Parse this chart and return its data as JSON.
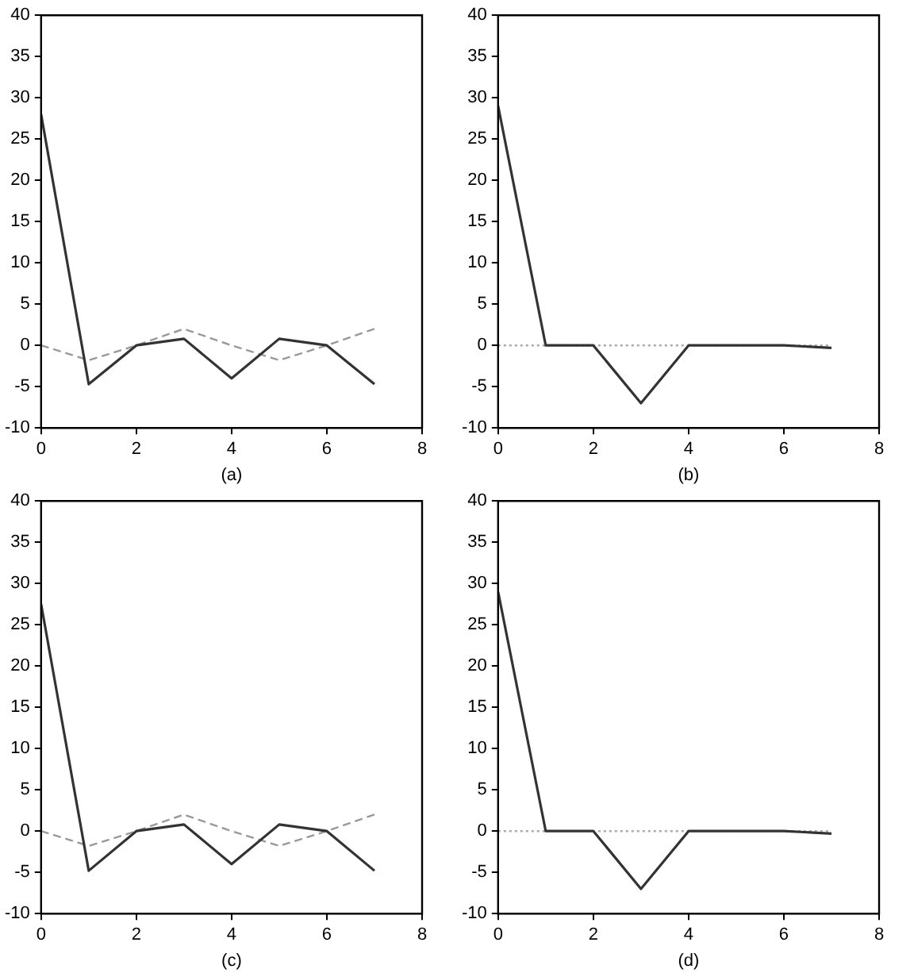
{
  "chart_data": [
    {
      "type": "line",
      "xlabel": "(a)",
      "x": [
        0,
        1,
        2,
        3,
        4,
        5,
        6,
        7
      ],
      "xlim": [
        0,
        8
      ],
      "xticks": [
        0,
        2,
        4,
        6,
        8
      ],
      "ylim": [
        -10,
        40
      ],
      "yticks": [
        -10,
        -5,
        0,
        5,
        10,
        15,
        20,
        25,
        30,
        35,
        40
      ],
      "marker": "none",
      "series": [
        {
          "color": "#333333",
          "line_style": "solid",
          "values": [
            28,
            -4.7,
            0,
            0.8,
            -4,
            0.8,
            0,
            -4.7
          ]
        },
        {
          "color": "#999999",
          "line_style": "dashed",
          "values": [
            0,
            -1.8,
            0,
            2,
            0,
            -1.8,
            0,
            2
          ]
        }
      ]
    },
    {
      "type": "line",
      "xlabel": "(b)",
      "x": [
        0,
        1,
        2,
        3,
        4,
        5,
        6,
        7
      ],
      "xlim": [
        0,
        8
      ],
      "xticks": [
        0,
        2,
        4,
        6,
        8
      ],
      "ylim": [
        -10,
        40
      ],
      "yticks": [
        -10,
        -5,
        0,
        5,
        10,
        15,
        20,
        25,
        30,
        35,
        40
      ],
      "marker": "none",
      "series": [
        {
          "color": "#333333",
          "line_style": "solid",
          "values": [
            29,
            0,
            0,
            -7,
            0,
            0,
            0,
            -0.3
          ]
        },
        {
          "color": "#aaaaaa",
          "line_style": "dotted",
          "values": [
            0,
            0,
            0,
            0,
            0,
            0,
            0,
            0
          ]
        }
      ]
    },
    {
      "type": "line",
      "xlabel": "(c)",
      "x": [
        0,
        1,
        2,
        3,
        4,
        5,
        6,
        7
      ],
      "xlim": [
        0,
        8
      ],
      "xticks": [
        0,
        2,
        4,
        6,
        8
      ],
      "ylim": [
        -10,
        40
      ],
      "yticks": [
        -10,
        -5,
        0,
        5,
        10,
        15,
        20,
        25,
        30,
        35,
        40
      ],
      "marker": "none",
      "series": [
        {
          "color": "#333333",
          "line_style": "solid",
          "values": [
            27.5,
            -4.8,
            0,
            0.8,
            -4,
            0.8,
            0,
            -4.8
          ]
        },
        {
          "color": "#999999",
          "line_style": "dashed",
          "values": [
            0,
            -1.8,
            0,
            2,
            0,
            -1.8,
            0,
            2
          ]
        }
      ]
    },
    {
      "type": "line",
      "xlabel": "(d)",
      "x": [
        0,
        1,
        2,
        3,
        4,
        5,
        6,
        7
      ],
      "xlim": [
        0,
        8
      ],
      "xticks": [
        0,
        2,
        4,
        6,
        8
      ],
      "ylim": [
        -10,
        40
      ],
      "yticks": [
        -10,
        -5,
        0,
        5,
        10,
        15,
        20,
        25,
        30,
        35,
        40
      ],
      "marker": "none",
      "series": [
        {
          "color": "#333333",
          "line_style": "solid",
          "values": [
            29,
            0,
            0,
            -7,
            0,
            0,
            0,
            -0.3
          ]
        },
        {
          "color": "#aaaaaa",
          "line_style": "dotted",
          "values": [
            0,
            0,
            0,
            0,
            0,
            0,
            0,
            0
          ]
        }
      ]
    }
  ]
}
